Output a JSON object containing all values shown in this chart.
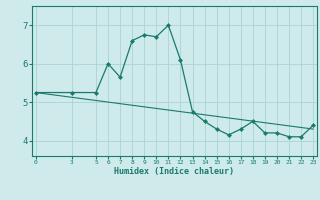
{
  "xlabel": "Humidex (Indice chaleur)",
  "bg_color": "#ceeaea",
  "line_color": "#1a7a6e",
  "marker_color": "#1a7a6e",
  "grid_color": "#aad4d4",
  "x_data": [
    0,
    3,
    5,
    6,
    7,
    8,
    9,
    10,
    11,
    12,
    13,
    14,
    15,
    16,
    17,
    18,
    19,
    20,
    21,
    22,
    23
  ],
  "y_data": [
    5.25,
    5.25,
    5.25,
    6.0,
    5.65,
    6.6,
    6.75,
    6.7,
    7.0,
    6.1,
    4.75,
    4.5,
    4.3,
    4.15,
    4.3,
    4.5,
    4.2,
    4.2,
    4.1,
    4.1,
    4.4
  ],
  "y2_data_x": [
    0,
    23
  ],
  "y2_data_y": [
    5.25,
    4.3
  ],
  "xticks": [
    0,
    3,
    5,
    6,
    7,
    8,
    9,
    10,
    11,
    12,
    13,
    14,
    15,
    16,
    17,
    18,
    19,
    20,
    21,
    22,
    23
  ],
  "yticks": [
    4,
    5,
    6,
    7
  ],
  "ylim": [
    3.6,
    7.5
  ],
  "xlim": [
    -0.3,
    23.3
  ]
}
